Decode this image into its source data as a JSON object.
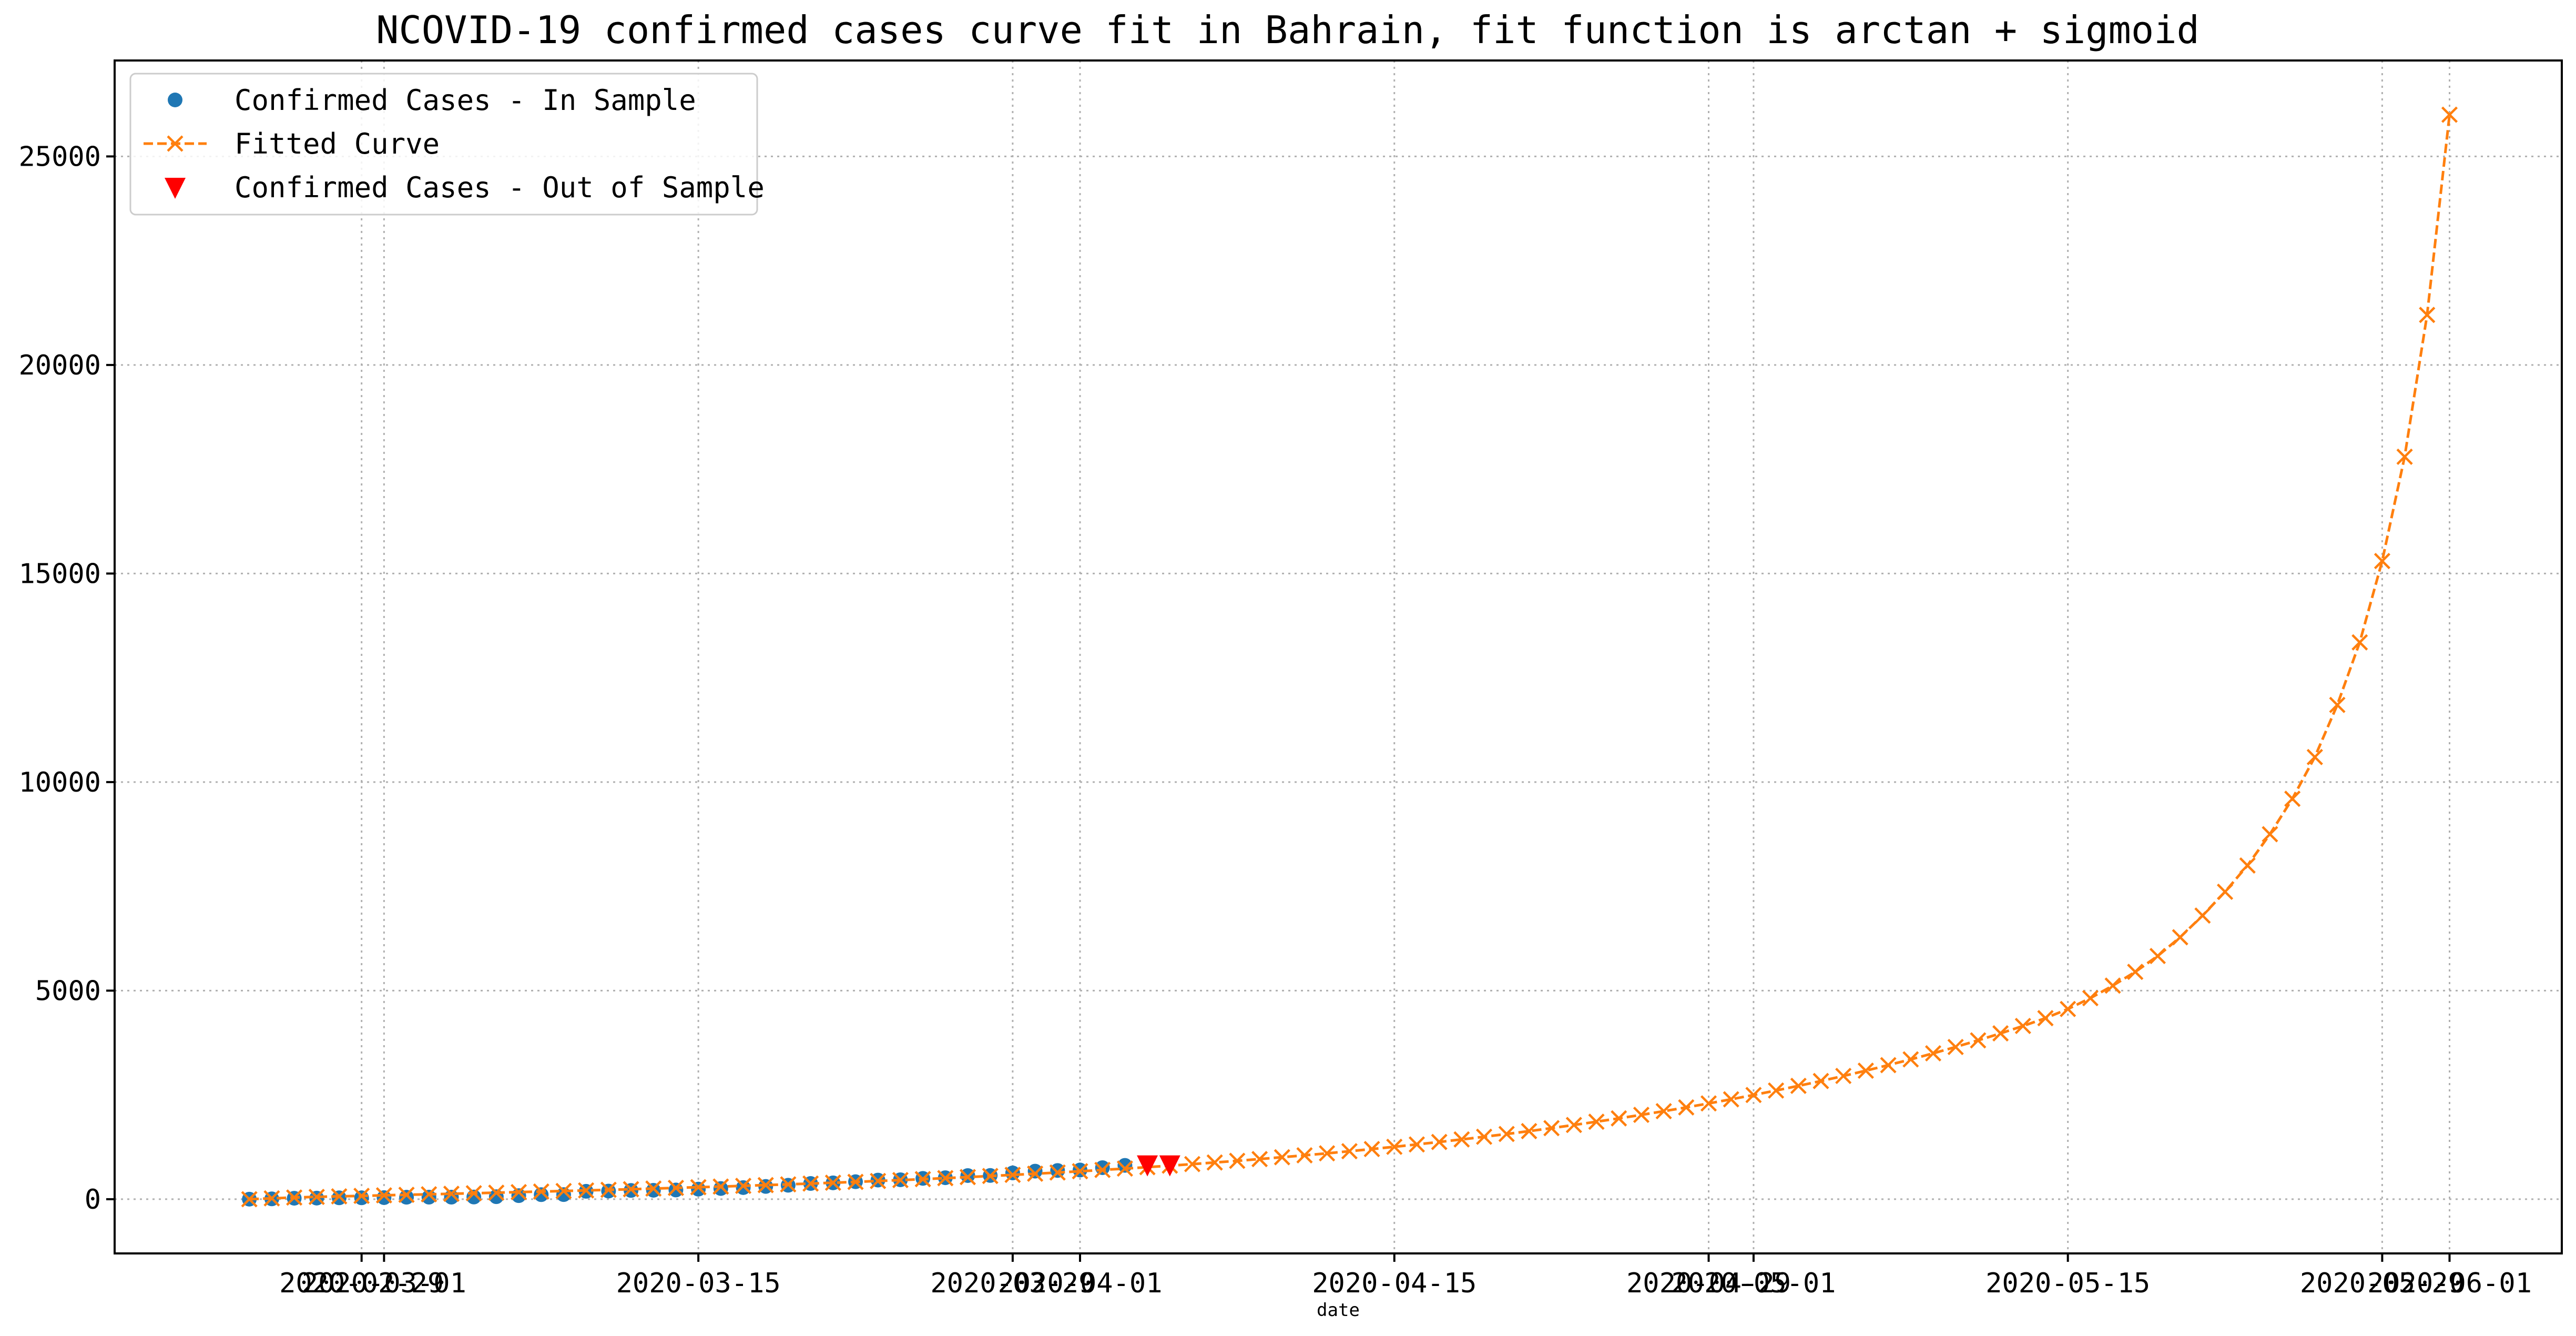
{
  "chart_data": {
    "type": "line",
    "title": "NCOVID-19 confirmed cases curve fit in Bahrain, fit function is arctan + sigmoid",
    "xlabel": "date",
    "ylabel": "",
    "x_axis_type": "date",
    "xlim": [
      "2020-02-18",
      "2020-06-06"
    ],
    "ylim": [
      -1300,
      27300
    ],
    "grid": true,
    "legend_position": "upper-left",
    "x_ticks": [
      "2020-02-29",
      "2020-03-01",
      "2020-03-15",
      "2020-03-29",
      "2020-04-01",
      "2020-04-15",
      "2020-04-29",
      "2020-05-01",
      "2020-05-15",
      "2020-05-29",
      "2020-06-01"
    ],
    "y_ticks": [
      0,
      5000,
      10000,
      15000,
      20000,
      25000
    ],
    "series": [
      {
        "name": "Confirmed Cases - In Sample",
        "style": "points",
        "marker": "circle",
        "color": "#1f77b4",
        "start_date": "2020-02-24",
        "values": [
          1,
          8,
          23,
          26,
          33,
          33,
          38,
          47,
          49,
          49,
          52,
          60,
          85,
          109,
          110,
          189,
          195,
          210,
          214,
          221,
          241,
          256,
          278,
          306,
          334,
          377,
          392,
          419,
          458,
          466,
          499,
          515,
          567,
          569,
          630,
          672,
          688,
          700,
          756,
          811
        ]
      },
      {
        "name": "Fitted Curve",
        "style": "dashed-line",
        "marker": "x",
        "color": "#ff7f0e",
        "start_date": "2020-02-24",
        "values": [
          0,
          20,
          40,
          55,
          68,
          80,
          93,
          105,
          118,
          130,
          143,
          156,
          170,
          183,
          197,
          211,
          225,
          240,
          255,
          271,
          287,
          303,
          320,
          338,
          356,
          375,
          395,
          415,
          436,
          458,
          481,
          505,
          530,
          556,
          583,
          611,
          640,
          670,
          701,
          734,
          768,
          804,
          841,
          880,
          920,
          962,
          1006,
          1052,
          1100,
          1150,
          1202,
          1256,
          1313,
          1372,
          1433,
          1497,
          1563,
          1632,
          1704,
          1779,
          1857,
          1938,
          2022,
          2110,
          2201,
          2296,
          2395,
          2498,
          2605,
          2717,
          2833,
          2955,
          3081,
          3214,
          3352,
          3497,
          3649,
          3808,
          3976,
          4153,
          4340,
          4560,
          4820,
          5120,
          5450,
          5830,
          6280,
          6800,
          7370,
          8000,
          8750,
          9600,
          10600,
          11850,
          13350,
          15300,
          17800,
          21200,
          26000
        ]
      },
      {
        "name": "Confirmed Cases - Out of Sample",
        "style": "points",
        "marker": "triangle-down",
        "color": "#ff0000",
        "start_date": "2020-04-04",
        "values": [
          823,
          823
        ]
      }
    ]
  }
}
